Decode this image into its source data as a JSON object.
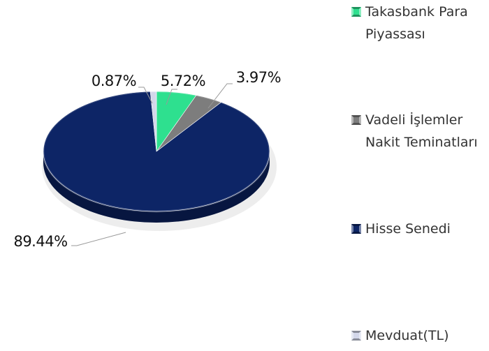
{
  "chart_data": {
    "type": "pie",
    "categories": [
      "Takasbank Para Piyassası",
      "Vadeli İşlemler Nakit Teminatları",
      "Hisse Senedi",
      "Mevduat(TL)"
    ],
    "values": [
      5.72,
      3.97,
      89.44,
      0.87
    ],
    "value_labels": [
      "5.72%",
      "3.97%",
      "89.44%",
      "0.87%"
    ],
    "colors": [
      "#2ee08f",
      "#7d7d7d",
      "#0d2566",
      "#d3d7ea"
    ],
    "legend": "right"
  }
}
